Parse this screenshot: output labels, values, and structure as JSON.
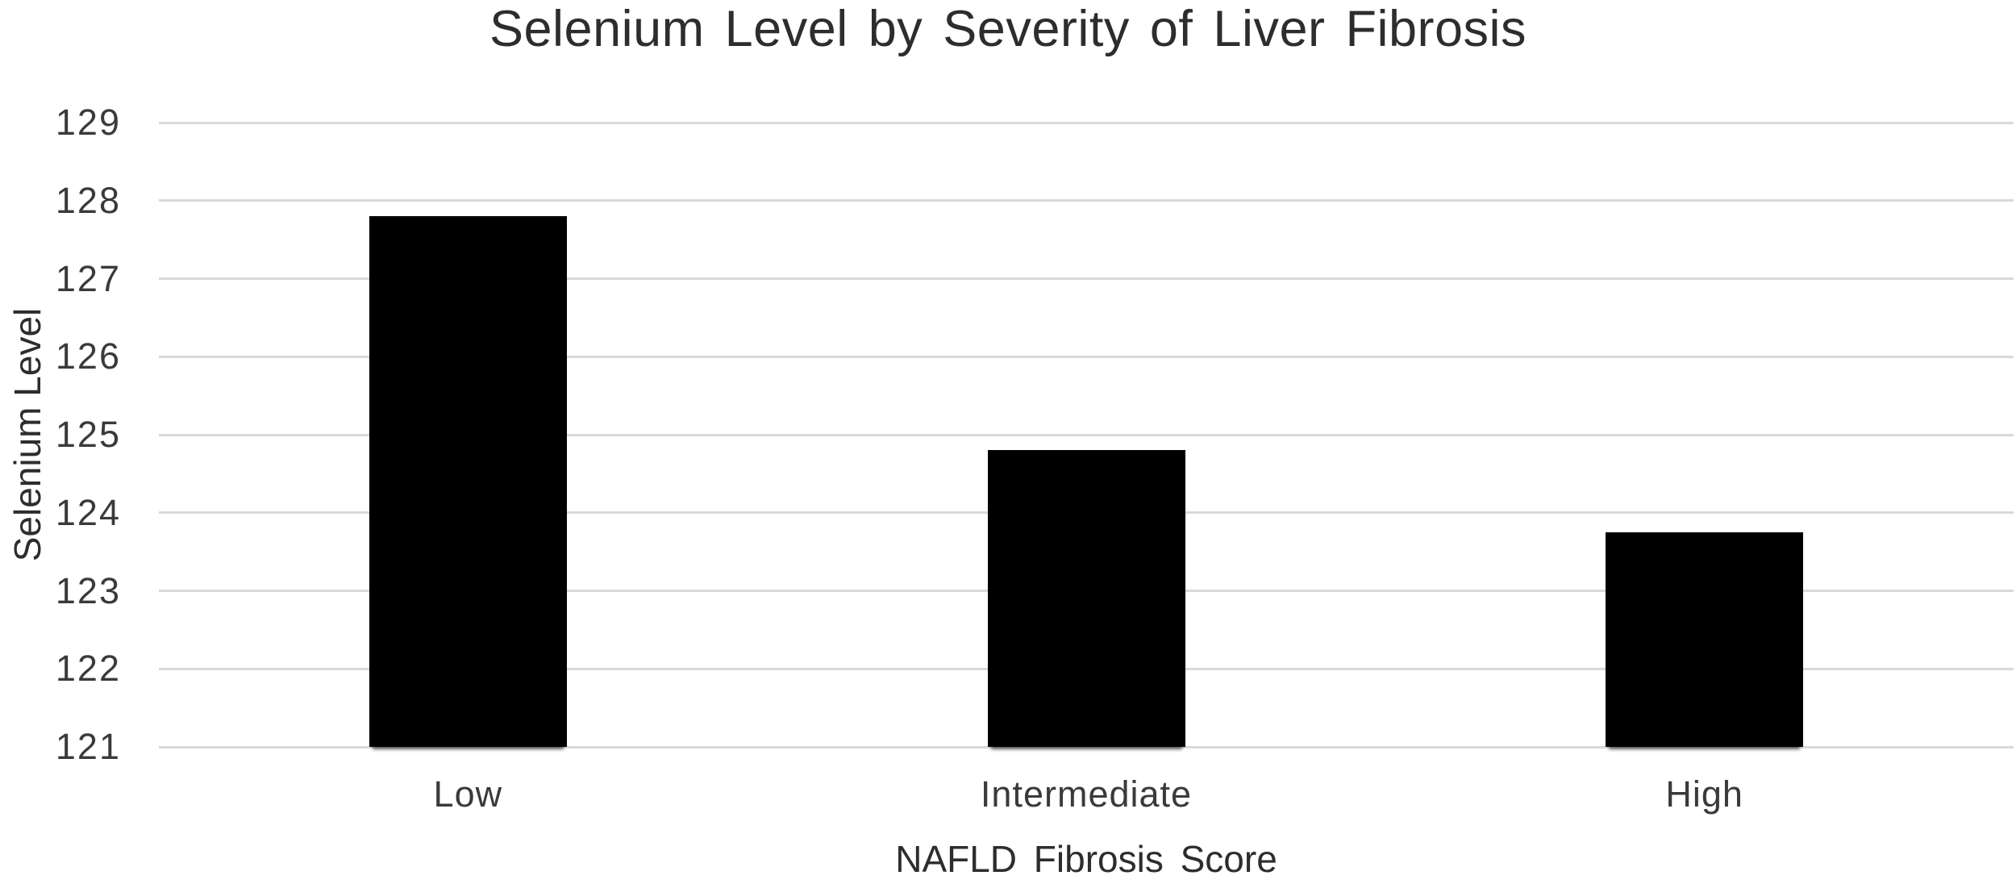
{
  "chart_data": {
    "type": "bar",
    "title": "Selenium Level by Severity of Liver Fibrosis",
    "xlabel": "NAFLD Fibrosis Score",
    "ylabel": "Selenium Level",
    "categories": [
      "Low",
      "Intermediate",
      "High"
    ],
    "values": [
      127.8,
      124.8,
      123.75
    ],
    "ylim": [
      121,
      129
    ],
    "yticks": [
      129,
      128,
      127,
      126,
      125,
      124,
      123,
      122,
      121
    ],
    "grid": "horizontal",
    "legend_position": "none",
    "colors": {
      "bar": "#000000",
      "gridline": "#d9d9d9",
      "axis_text": "#3a3a3a",
      "title_text": "#2d2d2d",
      "background": "#ffffff"
    }
  }
}
